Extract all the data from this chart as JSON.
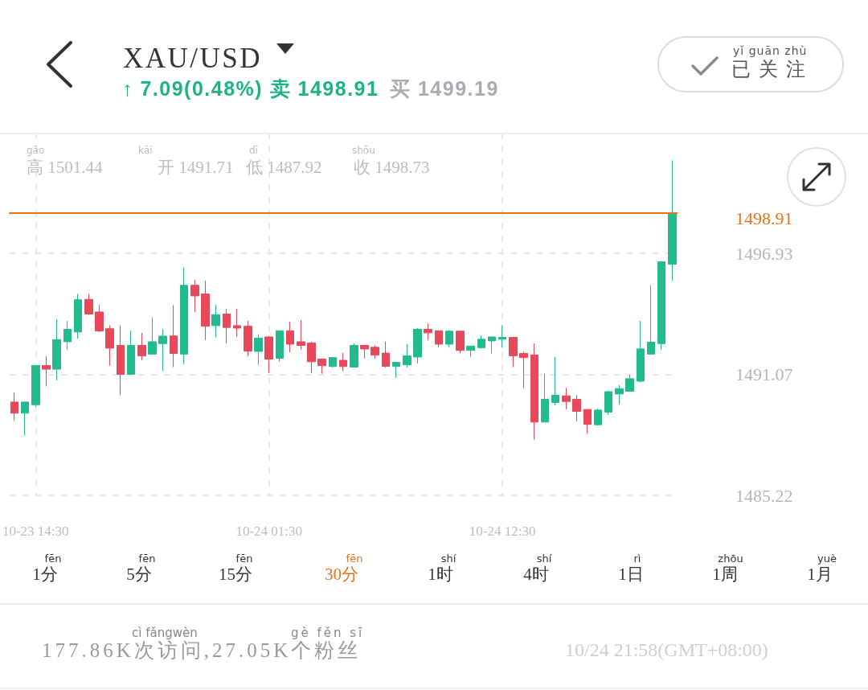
{
  "chart_data": {
    "type": "candlestick",
    "title": "XAU/USD",
    "subtitle": "↑ 7.09(0.48%) 卖 1498.91",
    "categories": [
      null,
      null,
      "10-23 14:30",
      null,
      null,
      null,
      null,
      null,
      null,
      null,
      null,
      null,
      null,
      null,
      null,
      null,
      null,
      null,
      null,
      null,
      null,
      null,
      null,
      null,
      "10-24 01:30",
      null,
      null,
      null,
      null,
      null,
      null,
      null,
      null,
      null,
      null,
      null,
      null,
      null,
      null,
      null,
      null,
      null,
      null,
      null,
      null,
      null,
      "10-24 12:30",
      null,
      null,
      null,
      null,
      null,
      null,
      null,
      null,
      null,
      null,
      null,
      null,
      null,
      null,
      null,
      null
    ],
    "ohlc": [
      [
        1489.74,
        1490.2,
        1488.83,
        1489.2
      ],
      [
        1489.2,
        1489.74,
        1488.12,
        1489.74
      ],
      [
        1489.61,
        1491.51,
        1489.52,
        1491.51
      ],
      [
        1491.51,
        1491.96,
        1490.5,
        1491.33
      ],
      [
        1491.33,
        1493.75,
        1490.79,
        1492.76
      ],
      [
        1492.66,
        1493.67,
        1492.28,
        1493.26
      ],
      [
        1493.13,
        1494.97,
        1492.81,
        1494.69
      ],
      [
        1494.71,
        1494.97,
        1493.96,
        1494.0
      ],
      [
        1494.1,
        1494.45,
        1493.13,
        1493.18
      ],
      [
        1493.29,
        1493.45,
        1491.5,
        1492.35
      ],
      [
        1492.48,
        1493.45,
        1490.07,
        1491.08
      ],
      [
        1491.08,
        1493.19,
        1491.08,
        1492.48
      ],
      [
        1492.48,
        1493.09,
        1491.76,
        1491.98
      ],
      [
        1492.06,
        1493.84,
        1492.06,
        1492.66
      ],
      [
        1492.57,
        1493.26,
        1491.24,
        1492.93
      ],
      [
        1492.94,
        1494.43,
        1491.43,
        1492.09
      ],
      [
        1492.06,
        1496.25,
        1491.57,
        1495.39
      ],
      [
        1495.39,
        1495.64,
        1494.1,
        1494.88
      ],
      [
        1494.97,
        1495.62,
        1492.74,
        1493.41
      ],
      [
        1493.44,
        1494.45,
        1492.87,
        1493.97
      ],
      [
        1494.0,
        1494.26,
        1492.58,
        1493.35
      ],
      [
        1493.44,
        1494.26,
        1492.89,
        1493.32
      ],
      [
        1493.41,
        1493.67,
        1491.96,
        1492.21
      ],
      [
        1492.19,
        1493.02,
        1491.54,
        1492.83
      ],
      [
        1492.89,
        1492.93,
        1491.14,
        1491.82
      ],
      [
        1491.86,
        1493.19,
        1491.69,
        1493.19
      ],
      [
        1493.19,
        1493.62,
        1492.15,
        1492.54
      ],
      [
        1492.66,
        1493.71,
        1492.28,
        1492.48
      ],
      [
        1492.6,
        1492.67,
        1491.14,
        1491.69
      ],
      [
        1491.82,
        1491.82,
        1491.11,
        1491.5
      ],
      [
        1491.46,
        1491.89,
        1491.41,
        1491.89
      ],
      [
        1491.76,
        1492.11,
        1491.24,
        1491.46
      ],
      [
        1491.43,
        1492.57,
        1491.41,
        1492.48
      ],
      [
        1492.48,
        1492.48,
        1491.85,
        1492.31
      ],
      [
        1492.39,
        1492.48,
        1491.85,
        1492.02
      ],
      [
        1492.11,
        1492.67,
        1491.41,
        1491.47
      ],
      [
        1491.47,
        1491.66,
        1490.91,
        1491.66
      ],
      [
        1491.54,
        1492.54,
        1491.41,
        1491.98
      ],
      [
        1491.92,
        1493.32,
        1491.61,
        1493.26
      ],
      [
        1493.26,
        1493.54,
        1492.74,
        1493.09
      ],
      [
        1493.19,
        1493.19,
        1492.39,
        1492.54
      ],
      [
        1492.54,
        1493.22,
        1492.39,
        1493.17
      ],
      [
        1493.17,
        1493.17,
        1492.11,
        1492.25
      ],
      [
        1492.25,
        1492.45,
        1491.93,
        1492.45
      ],
      [
        1492.37,
        1492.96,
        1492.32,
        1492.78
      ],
      [
        1492.7,
        1492.89,
        1492.09,
        1492.89
      ],
      [
        1492.78,
        1493.45,
        1492.37,
        1492.87
      ],
      [
        1492.87,
        1492.87,
        1491.43,
        1491.98
      ],
      [
        1492.09,
        1492.19,
        1490.42,
        1491.89
      ],
      [
        1492.02,
        1492.57,
        1487.92,
        1488.77
      ],
      [
        1488.77,
        1491.11,
        1488.77,
        1489.87
      ],
      [
        1489.72,
        1491.92,
        1489.59,
        1490.07
      ],
      [
        1490.04,
        1490.43,
        1489.39,
        1489.77
      ],
      [
        1489.87,
        1490.07,
        1488.81,
        1489.29
      ],
      [
        1489.38,
        1489.38,
        1488.21,
        1488.66
      ],
      [
        1488.64,
        1489.42,
        1488.6,
        1489.35
      ],
      [
        1489.25,
        1490.29,
        1489.12,
        1490.24
      ],
      [
        1490.13,
        1490.55,
        1489.61,
        1490.39
      ],
      [
        1490.26,
        1491.07,
        1490.24,
        1490.87
      ],
      [
        1490.75,
        1493.67,
        1490.69,
        1492.31
      ],
      [
        1492.06,
        1495.4,
        1492.06,
        1492.64
      ],
      [
        1492.57,
        1496.56,
        1492.28,
        1496.53
      ],
      [
        1496.41,
        1501.44,
        1495.6,
        1498.91
      ]
    ],
    "colors": [
      "#e8485a",
      "#22bb8d",
      "#22bb8d",
      "#e8485a",
      "#22bb8d",
      "#22bb8d",
      "#22bb8d",
      "#e8485a",
      "#e8485a",
      "#e8485a",
      "#e8485a",
      "#22bb8d",
      "#e8485a",
      "#22bb8d",
      "#22bb8d",
      "#e8485a",
      "#22bb8d",
      "#e8485a",
      "#e8485a",
      "#22bb8d",
      "#e8485a",
      "#e8485a",
      "#e8485a",
      "#22bb8d",
      "#e8485a",
      "#22bb8d",
      "#e8485a",
      "#e8485a",
      "#e8485a",
      "#e8485a",
      "#22bb8d",
      "#e8485a",
      "#22bb8d",
      "#e8485a",
      "#e8485a",
      "#e8485a",
      "#22bb8d",
      "#22bb8d",
      "#22bb8d",
      "#e8485a",
      "#e8485a",
      "#22bb8d",
      "#e8485a",
      "#22bb8d",
      "#22bb8d",
      "#22bb8d",
      "#22bb8d",
      "#e8485a",
      "#e8485a",
      "#e8485a",
      "#22bb8d",
      "#22bb8d",
      "#e8485a",
      "#e8485a",
      "#e8485a",
      "#22bb8d",
      "#22bb8d",
      "#22bb8d",
      "#22bb8d",
      "#22bb8d",
      "#22bb8d",
      "#22bb8d",
      "#22bb8d"
    ],
    "ylim": [
      1485.22,
      1502.78
    ],
    "yticks": [
      1485.22,
      1491.07,
      1496.93
    ],
    "grid": true,
    "ref_lines": [
      {
        "axis": "y",
        "value": 1498.91,
        "label": "1498.91",
        "color": "#e8711c",
        "line_style": "solid"
      }
    ],
    "annotations": [
      "yǐ guān zhù",
      "已关注",
      "买 1499.19",
      "gāo",
      "高 1501.44",
      "kāi",
      "开 1491.71",
      "dī",
      "低 1487.92",
      "shōu",
      "收 1498.73",
      "fēn",
      "1分",
      "fēn",
      "5分",
      "fēn",
      "15分",
      "fēn",
      "30分",
      "shí",
      "1时",
      "shí",
      "4时",
      "rì",
      "1日",
      "zhōu",
      "1周",
      "yuè",
      "1月",
      "cì fǎngwèn",
      "gè fěn sī",
      "177.86K次访问,27.05K个粉丝",
      "10/24 21:58(GMT+08:00)"
    ]
  }
}
